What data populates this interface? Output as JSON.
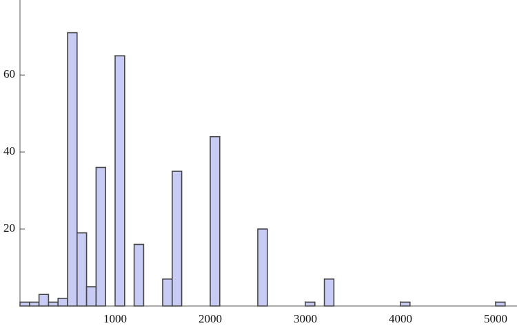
{
  "chart_data": {
    "type": "histogram",
    "bins": [
      0,
      100,
      200,
      300,
      400,
      500,
      600,
      700,
      800,
      900,
      1000,
      1100,
      1200,
      1300,
      1400,
      1500,
      1600,
      1700,
      1800,
      1900,
      2000,
      2100,
      2200,
      2300,
      2400,
      2500,
      2600,
      2700,
      2800,
      2900,
      3000,
      3100,
      3200,
      3300,
      3400,
      3500,
      3600,
      3700,
      3800,
      3900,
      4000,
      4100,
      4200,
      4300,
      4400,
      4500,
      4600,
      4700,
      4800,
      4900,
      5000,
      5100
    ],
    "values": [
      1,
      1,
      3,
      1,
      2,
      71,
      19,
      5,
      36,
      0,
      65,
      0,
      16,
      0,
      0,
      7,
      35,
      0,
      0,
      0,
      44,
      0,
      0,
      0,
      0,
      20,
      0,
      0,
      0,
      0,
      1,
      0,
      7,
      0,
      0,
      0,
      0,
      0,
      0,
      0,
      1,
      0,
      0,
      0,
      0,
      0,
      0,
      0,
      0,
      0,
      1
    ],
    "color": "#c8ccf4",
    "xlim": [
      0,
      5225
    ],
    "ylim": [
      0,
      79.5
    ],
    "xticks": [
      1000,
      2000,
      3000,
      4000,
      5000
    ],
    "yticks": [
      20,
      40,
      60
    ],
    "grid": false
  }
}
